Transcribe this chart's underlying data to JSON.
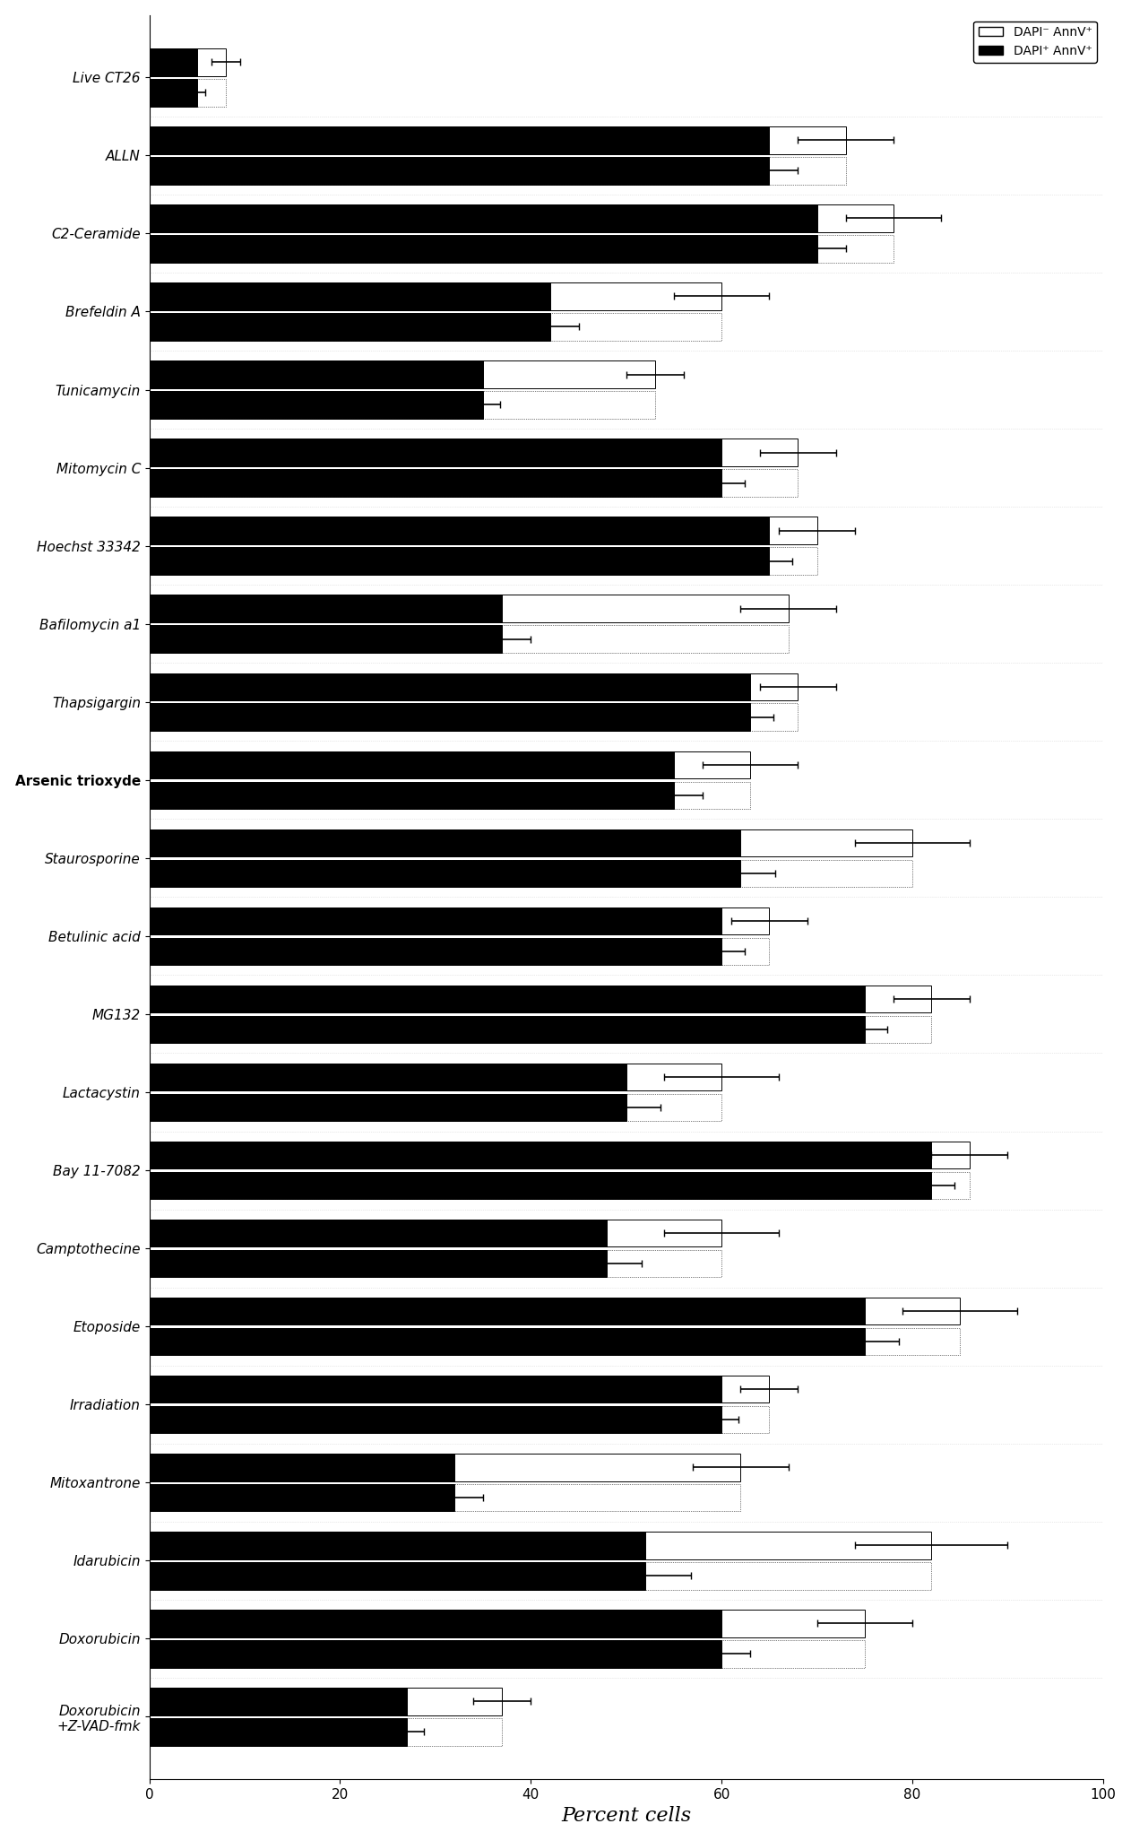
{
  "categories": [
    "Live CT26",
    "ALLN",
    "C2-Ceramide",
    "Brefeldin A",
    "Tunicamycin",
    "Mitomycin C",
    "Hoechst 33342",
    "Bafilomycin a1",
    "Thapsigargin",
    "Arsenic trioxyde",
    "Staurosporine",
    "Betulinic acid",
    "MG132",
    "Lactacystin",
    "Bay 11-7082",
    "Camptothecine",
    "Etoposide",
    "Irradiation",
    "Mitoxantrone",
    "Idarubicin",
    "Doxorubicin",
    "Doxorubicin\n+Z-VAD-fmk"
  ],
  "black_values": [
    5,
    65,
    70,
    42,
    35,
    60,
    65,
    37,
    63,
    55,
    62,
    60,
    75,
    50,
    82,
    48,
    75,
    60,
    32,
    52,
    60,
    27
  ],
  "white_values": [
    3,
    8,
    8,
    18,
    18,
    8,
    5,
    30,
    5,
    8,
    18,
    5,
    7,
    10,
    4,
    12,
    10,
    5,
    30,
    30,
    15,
    10
  ],
  "total_errors": [
    1.5,
    5,
    5,
    5,
    3,
    4,
    4,
    5,
    4,
    5,
    6,
    4,
    4,
    6,
    4,
    6,
    6,
    3,
    5,
    8,
    5,
    3
  ],
  "xlabel": "Percent cells",
  "xlim_max": 100,
  "xticks": [
    0,
    20,
    40,
    60,
    80,
    100
  ],
  "legend_label_white": "DAPI⁻ AnnV⁺",
  "legend_label_black": "DAPI⁺ AnnV⁺",
  "bold_category": "Arsenic trioxyde",
  "bar_height": 0.35,
  "bar_gap": 0.04,
  "figure_width": 12.62,
  "figure_height": 20.53,
  "tick_fontsize": 11,
  "label_fontsize": 16
}
